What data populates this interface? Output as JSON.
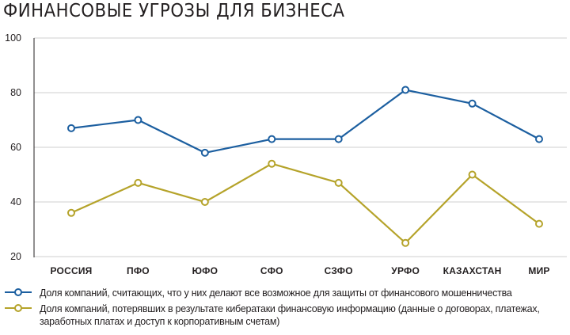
{
  "title": "ФИНАНСОВЫЕ УГРОЗЫ ДЛЯ БИЗНЕСА",
  "chart_data": {
    "type": "line",
    "categories": [
      "РОССИЯ",
      "ПФО",
      "ЮФО",
      "СФО",
      "СЗФО",
      "УРФО",
      "КАЗАХСТАН",
      "МИР"
    ],
    "ylim": [
      20,
      100
    ],
    "yticks": [
      20,
      40,
      60,
      80,
      100
    ],
    "grid": true,
    "legend_position": "bottom",
    "series": [
      {
        "name": "Доля компаний, считающих, что у них делают все возможное для защиты от финансового мошенничества",
        "color": "#1c5fa0",
        "values": [
          67,
          70,
          58,
          63,
          63,
          81,
          76,
          63
        ]
      },
      {
        "name": "Доля компаний, потерявших в результате кибератаки финансовую информацию (данные о договорах, платежах, заработных платах и доступ к корпоративным счетам)",
        "color": "#b5a32a",
        "values": [
          36,
          47,
          40,
          54,
          47,
          25,
          50,
          32
        ]
      }
    ]
  }
}
